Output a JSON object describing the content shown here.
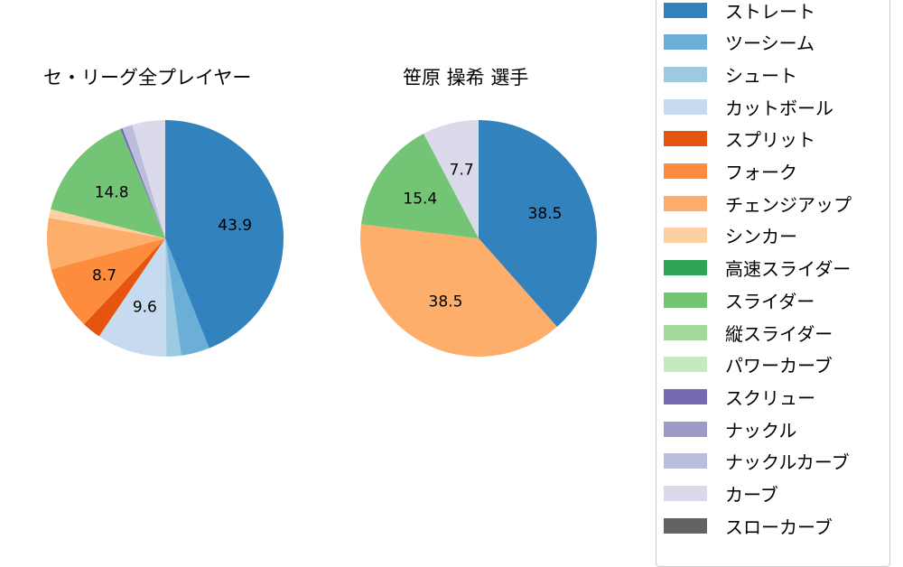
{
  "chart_data": [
    {
      "type": "pie",
      "title": "セ・リーグ全プレイヤー",
      "categories": [
        "ストレート",
        "ツーシーム",
        "シュート",
        "カットボール",
        "スプリット",
        "フォーク",
        "チェンジアップ",
        "シンカー",
        "スライダー",
        "スクリュー",
        "ナックルカーブ",
        "カーブ"
      ],
      "values": [
        43.9,
        3.9,
        2.0,
        9.6,
        2.6,
        8.7,
        7.0,
        1.2,
        14.8,
        0.3,
        1.4,
        4.5
      ],
      "labels_shown": [
        "43.9",
        "",
        "",
        "9.6",
        "",
        "8.7",
        "",
        "",
        "14.8",
        "",
        "",
        ""
      ],
      "start_angle": 90,
      "direction": "clockwise"
    },
    {
      "type": "pie",
      "title": "笹原 操希  選手",
      "categories": [
        "ストレート",
        "チェンジアップ",
        "スライダー",
        "カーブ"
      ],
      "values": [
        38.5,
        38.5,
        15.4,
        7.7
      ],
      "labels_shown": [
        "38.5",
        "38.5",
        "15.4",
        "7.7"
      ],
      "start_angle": 90,
      "direction": "clockwise"
    }
  ],
  "titles": {
    "left": "セ・リーグ全プレイヤー",
    "right": "笹原 操希  選手"
  },
  "legend": {
    "items": [
      {
        "label": "ストレート",
        "color": "#3182bd"
      },
      {
        "label": "ツーシーム",
        "color": "#6baed6"
      },
      {
        "label": "シュート",
        "color": "#9ecae1"
      },
      {
        "label": "カットボール",
        "color": "#c6dbef"
      },
      {
        "label": "スプリット",
        "color": "#e6550d"
      },
      {
        "label": "フォーク",
        "color": "#fd8d3c"
      },
      {
        "label": "チェンジアップ",
        "color": "#fdae6b"
      },
      {
        "label": "シンカー",
        "color": "#fdd0a2"
      },
      {
        "label": "高速スライダー",
        "color": "#31a354"
      },
      {
        "label": "スライダー",
        "color": "#74c476"
      },
      {
        "label": "縦スライダー",
        "color": "#a1d99b"
      },
      {
        "label": "パワーカーブ",
        "color": "#c7e9c0"
      },
      {
        "label": "スクリュー",
        "color": "#756bb1"
      },
      {
        "label": "ナックル",
        "color": "#9e9ac8"
      },
      {
        "label": "ナックルカーブ",
        "color": "#bcbddc"
      },
      {
        "label": "カーブ",
        "color": "#dadaeb"
      },
      {
        "label": "スローカーブ",
        "color": "#636363"
      }
    ]
  }
}
